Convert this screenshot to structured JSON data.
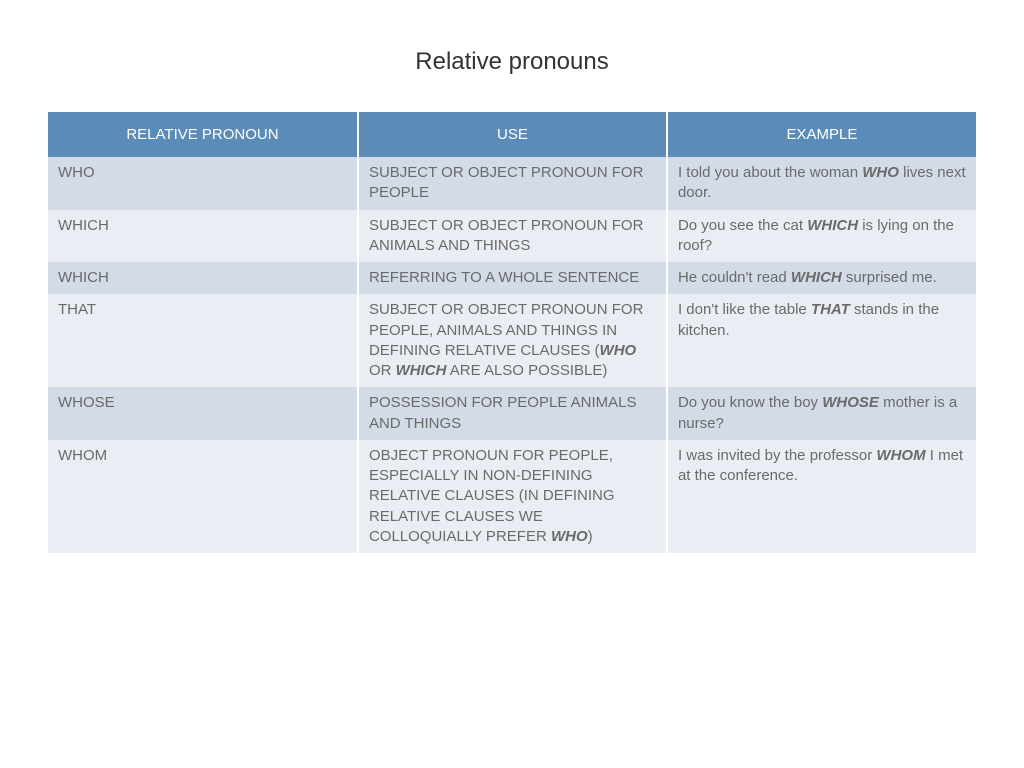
{
  "title": "Relative pronouns",
  "table": {
    "header_bg": "#5b8cb8",
    "header_fg": "#ffffff",
    "row_even_bg": "#d3dbe6",
    "row_odd_bg": "#eaeef4",
    "text_color": "#6a6a6a",
    "font_size_header": 15,
    "font_size_cell": 15,
    "columns": [
      {
        "label": "relative pronoun",
        "width_pct": 33.4
      },
      {
        "label": "use",
        "width_pct": 33.3
      },
      {
        "label": "example",
        "width_pct": 33.3
      }
    ],
    "rows": [
      {
        "pronoun": "who",
        "use_html": "subject or object pronoun for people",
        "example_html": "I <span class='mixed'>told you about the woman</span> <b><i>who</i></b> <span class='mixed'>lives next door.</span>"
      },
      {
        "pronoun": "which",
        "use_html": "subject or object pronoun for animals and things",
        "example_html": "D<span class='mixed'>o you see the cat</span> <b><i>which</i></b> <span class='mixed'>is lying on the roof?</span>"
      },
      {
        "pronoun": "which",
        "use_html": "referring to a whole sentence",
        "example_html": "H<span class='mixed'>e couldn't read</span> <b><i>which</i></b> <span class='mixed'>surprised me.</span>"
      },
      {
        "pronoun": "that",
        "use_html": "subject or object pronoun for people, animals and things in defining relative clauses (<b><i>who</i></b> or <b><i>which</i></b> are also possible)",
        "example_html": "I <span class='mixed'>don't like the table</span> <b><i>that</i></b> <span class='mixed'>stands in the kitchen.</span>"
      },
      {
        "pronoun": "whose",
        "use_html": "possession for people animals and things",
        "example_html": "D<span class='mixed'>o you know the boy</span> <b><i>whose</i></b> <span class='mixed'>mother is a nurse?</span>"
      },
      {
        "pronoun": "whom",
        "use_html": "object pronoun for people, especially in non-defining relative clauses (in defining relative clauses we colloquially prefer <b><i>who</i></b>)",
        "example_html": "I <span class='mixed'>was invited by the professor</span> <b><i>whom</i></b> I <span class='mixed'>met at the conference.</span>"
      }
    ]
  }
}
